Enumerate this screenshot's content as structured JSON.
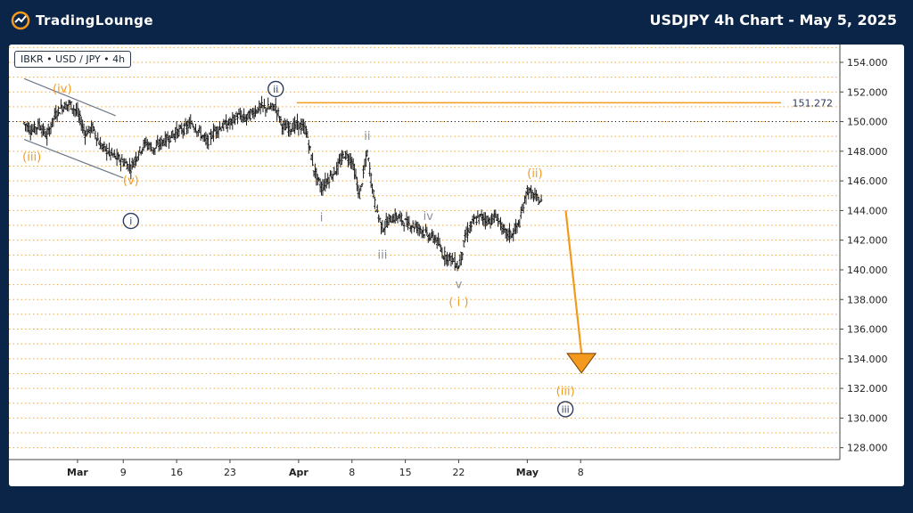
{
  "header": {
    "brand": "TradingLounge",
    "title": "USDJPY 4h Chart - May 5, 2025"
  },
  "symbol_label": "IBKR • USD / JPY • 4h",
  "colors": {
    "background": "#0b2548",
    "orange": "#f39a1e",
    "navy": "#2e3b60",
    "gray": "#8a8f99",
    "grid": "#f2a93b",
    "candle": "#1a1a1a"
  },
  "chart_data": {
    "type": "line",
    "title": "USDJPY 4h Chart - May 5, 2025",
    "ylim": [
      127.2,
      155.2
    ],
    "y_ticks": [
      "128.000",
      "130.000",
      "132.000",
      "134.000",
      "136.000",
      "138.000",
      "140.000",
      "142.000",
      "144.000",
      "146.000",
      "148.000",
      "150.000",
      "152.000",
      "154.000"
    ],
    "y_tick_values": [
      128,
      130,
      132,
      134,
      136,
      138,
      140,
      142,
      144,
      146,
      148,
      150,
      152,
      154
    ],
    "x_ticks": [
      "Mar",
      "9",
      "16",
      "23",
      "Apr",
      "8",
      "15",
      "22",
      "May",
      "8"
    ],
    "x_tick_values": [
      "2025-03-03",
      "2025-03-09",
      "2025-03-16",
      "2025-03-23",
      "2025-04-01",
      "2025-04-08",
      "2025-04-15",
      "2025-04-22",
      "2025-05-01",
      "2025-05-08"
    ],
    "price_path": [
      [
        "2025-02-24",
        149.9
      ],
      [
        "2025-02-25",
        149.4
      ],
      [
        "2025-02-26",
        149.8
      ],
      [
        "2025-02-27",
        149.0
      ],
      [
        "2025-02-28",
        150.4
      ],
      [
        "2025-03-01",
        151.0
      ],
      [
        "2025-03-02",
        151.2
      ],
      [
        "2025-03-03",
        150.6
      ],
      [
        "2025-03-04",
        149.2
      ],
      [
        "2025-03-05",
        149.6
      ],
      [
        "2025-03-06",
        148.4
      ],
      [
        "2025-03-07",
        148.0
      ],
      [
        "2025-03-08",
        147.6
      ],
      [
        "2025-03-09",
        147.3
      ],
      [
        "2025-03-10",
        146.9
      ],
      [
        "2025-03-11",
        147.9
      ],
      [
        "2025-03-12",
        148.6
      ],
      [
        "2025-03-13",
        148.1
      ],
      [
        "2025-03-14",
        148.6
      ],
      [
        "2025-03-15",
        148.9
      ],
      [
        "2025-03-16",
        149.3
      ],
      [
        "2025-03-17",
        149.5
      ],
      [
        "2025-03-18",
        149.9
      ],
      [
        "2025-03-19",
        149.3
      ],
      [
        "2025-03-20",
        148.6
      ],
      [
        "2025-03-21",
        149.4
      ],
      [
        "2025-03-22",
        149.7
      ],
      [
        "2025-03-23",
        149.9
      ],
      [
        "2025-03-24",
        150.4
      ],
      [
        "2025-03-25",
        150.2
      ],
      [
        "2025-03-26",
        150.6
      ],
      [
        "2025-03-27",
        151.0
      ],
      [
        "2025-03-28",
        150.9
      ],
      [
        "2025-03-29",
        151.0
      ],
      [
        "2025-03-30",
        149.6
      ],
      [
        "2025-03-31",
        149.6
      ],
      [
        "2025-04-01",
        149.8
      ],
      [
        "2025-04-02",
        149.4
      ],
      [
        "2025-04-03",
        146.8
      ],
      [
        "2025-04-04",
        145.5
      ],
      [
        "2025-04-05",
        146.2
      ],
      [
        "2025-04-06",
        146.8
      ],
      [
        "2025-04-07",
        147.8
      ],
      [
        "2025-04-08",
        147.4
      ],
      [
        "2025-04-09",
        145.0
      ],
      [
        "2025-04-10",
        147.9
      ],
      [
        "2025-04-11",
        144.5
      ],
      [
        "2025-04-12",
        142.8
      ],
      [
        "2025-04-13",
        143.4
      ],
      [
        "2025-04-14",
        143.6
      ],
      [
        "2025-04-15",
        143.2
      ],
      [
        "2025-04-16",
        143.0
      ],
      [
        "2025-04-17",
        142.8
      ],
      [
        "2025-04-18",
        142.3
      ],
      [
        "2025-04-19",
        142.1
      ],
      [
        "2025-04-20",
        141.0
      ],
      [
        "2025-04-21",
        140.8
      ],
      [
        "2025-04-22",
        140.2
      ],
      [
        "2025-04-23",
        142.4
      ],
      [
        "2025-04-24",
        143.3
      ],
      [
        "2025-04-25",
        143.6
      ],
      [
        "2025-04-26",
        143.3
      ],
      [
        "2025-04-27",
        143.6
      ],
      [
        "2025-04-28",
        142.5
      ],
      [
        "2025-04-29",
        142.4
      ],
      [
        "2025-04-30",
        143.2
      ],
      [
        "2025-05-01",
        145.4
      ],
      [
        "2025-05-02",
        144.9
      ],
      [
        "2025-05-03",
        144.5
      ]
    ],
    "horizontal_levels": [
      {
        "label": "151.272",
        "value": 151.272,
        "x_start": "2025-04-01",
        "x_end": "2025-05-06"
      },
      {
        "value": 150.0,
        "style": "dotted-dark"
      }
    ],
    "channel_lines": [
      {
        "from": [
          "2025-02-24",
          152.9
        ],
        "to": [
          "2025-03-08",
          150.4
        ]
      },
      {
        "from": [
          "2025-02-24",
          148.8
        ],
        "to": [
          "2025-03-09",
          146.2
        ]
      }
    ],
    "projection": {
      "from": [
        "2025-05-03",
        144.0
      ],
      "to": [
        "2025-05-06",
        133.4
      ]
    },
    "wave_labels": [
      {
        "text": "(iv)",
        "x": "2025-03-01",
        "y": 152.2,
        "color": "orange"
      },
      {
        "text": "(iii)",
        "x": "2025-02-25",
        "y": 147.6,
        "color": "orange"
      },
      {
        "text": "(v)",
        "x": "2025-03-10",
        "y": 146.0,
        "color": "orange"
      },
      {
        "text": "i",
        "x": "2025-03-10",
        "y": 143.3,
        "color": "navy",
        "circled": true
      },
      {
        "text": "ii",
        "x": "2025-03-29",
        "y": 152.2,
        "color": "navy",
        "circled": true
      },
      {
        "text": "i",
        "x": "2025-04-04",
        "y": 143.5,
        "color": "gray"
      },
      {
        "text": "ii",
        "x": "2025-04-10",
        "y": 149.0,
        "color": "gray"
      },
      {
        "text": "iii",
        "x": "2025-04-12",
        "y": 141.0,
        "color": "gray"
      },
      {
        "text": "iv",
        "x": "2025-04-18",
        "y": 143.6,
        "color": "gray"
      },
      {
        "text": "v",
        "x": "2025-04-22",
        "y": 139.0,
        "color": "gray"
      },
      {
        "text": "( i )",
        "x": "2025-04-22",
        "y": 137.8,
        "color": "orange"
      },
      {
        "text": "(ii)",
        "x": "2025-05-02",
        "y": 146.5,
        "color": "orange"
      },
      {
        "text": "(iii)",
        "x": "2025-05-06",
        "y": 131.8,
        "color": "orange"
      },
      {
        "text": "iii",
        "x": "2025-05-06",
        "y": 130.6,
        "color": "navy",
        "circled": true
      }
    ]
  }
}
